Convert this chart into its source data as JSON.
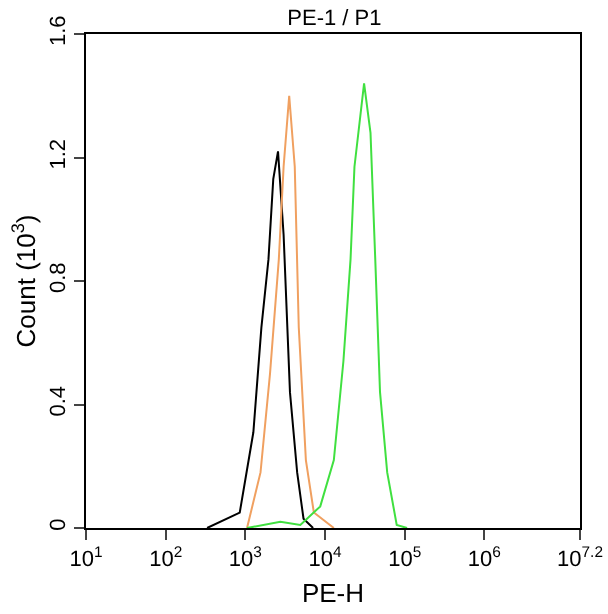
{
  "chart_data": {
    "type": "line",
    "title": "PE-1 / P1",
    "xlabel": "PE-H",
    "ylabel": "Count (10$^{3}$)",
    "log": "x",
    "grid": false,
    "marker": "none",
    "line_style": "solid",
    "xlim": [
      10,
      15848932
    ],
    "xticks": [
      {
        "value": 10,
        "label": "10$^{1}$"
      },
      {
        "value": 100,
        "label": "10$^{2}$"
      },
      {
        "value": 1000,
        "label": "10$^{3}$"
      },
      {
        "value": 10000,
        "label": "10$^{4}$"
      },
      {
        "value": 100000,
        "label": "10$^{5}$"
      },
      {
        "value": 1000000,
        "label": "10$^{6}$"
      },
      {
        "value": 15848932,
        "label": "10$^{7.2}$"
      }
    ],
    "ylim": [
      0,
      1.6
    ],
    "yticks": [
      0,
      0.4,
      0.8,
      1.2,
      1.6
    ],
    "series": [
      {
        "color": "#000000",
        "x": [
          331,
          850,
          1260,
          1590,
          1950,
          2240,
          2570,
          3020,
          3630,
          4470,
          5370,
          7080
        ],
        "values": [
          0,
          0.05,
          0.31,
          0.65,
          0.87,
          1.13,
          1.22,
          0.95,
          0.44,
          0.18,
          0.03,
          0
        ]
      },
      {
        "color": "#f0a060",
        "x": [
          1050,
          1550,
          2040,
          2630,
          3020,
          3550,
          4170,
          4680,
          5750,
          7240,
          12900
        ],
        "values": [
          0,
          0.18,
          0.5,
          0.87,
          1.17,
          1.4,
          1.17,
          0.65,
          0.22,
          0.05,
          0
        ]
      },
      {
        "color": "#40e040",
        "x": [
          1050,
          2750,
          4900,
          8710,
          12900,
          17000,
          20900,
          23400,
          30900,
          37200,
          42700,
          49000,
          60300,
          79400,
          107000
        ],
        "values": [
          0,
          0.02,
          0.01,
          0.07,
          0.22,
          0.54,
          0.87,
          1.17,
          1.44,
          1.28,
          0.87,
          0.44,
          0.18,
          0.01,
          0
        ]
      }
    ]
  }
}
